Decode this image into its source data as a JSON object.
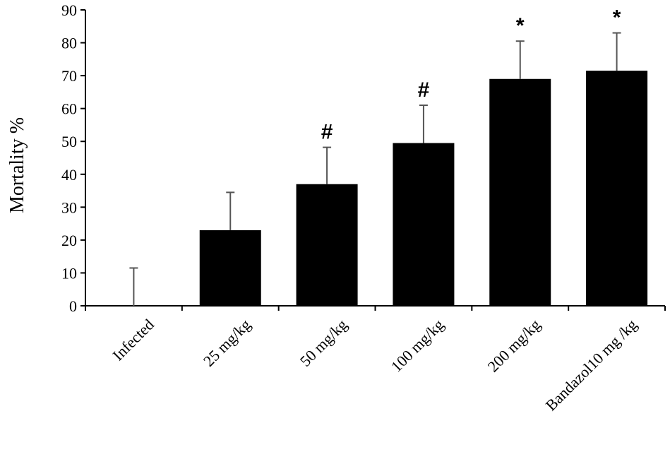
{
  "chart_data": {
    "type": "bar",
    "title": "",
    "xlabel": "",
    "ylabel": "Mortality %",
    "ylim": [
      0,
      90
    ],
    "yticks": [
      0,
      10,
      20,
      30,
      40,
      50,
      60,
      70,
      80,
      90
    ],
    "categories": [
      "Infected",
      "25 mg/kg",
      "50 mg/kg",
      "100 mg/kg",
      "200 mg/kg",
      "Bandazol10 mg /kg"
    ],
    "values": [
      0,
      23,
      37,
      49.5,
      69,
      71.5
    ],
    "error_plus": [
      11.5,
      11.5,
      11.2,
      11.5,
      11.5,
      11.5
    ],
    "significance": [
      "",
      "",
      "#",
      "#",
      "*",
      "*"
    ],
    "bar_color": "#000000",
    "grid": false,
    "legend": "none"
  }
}
